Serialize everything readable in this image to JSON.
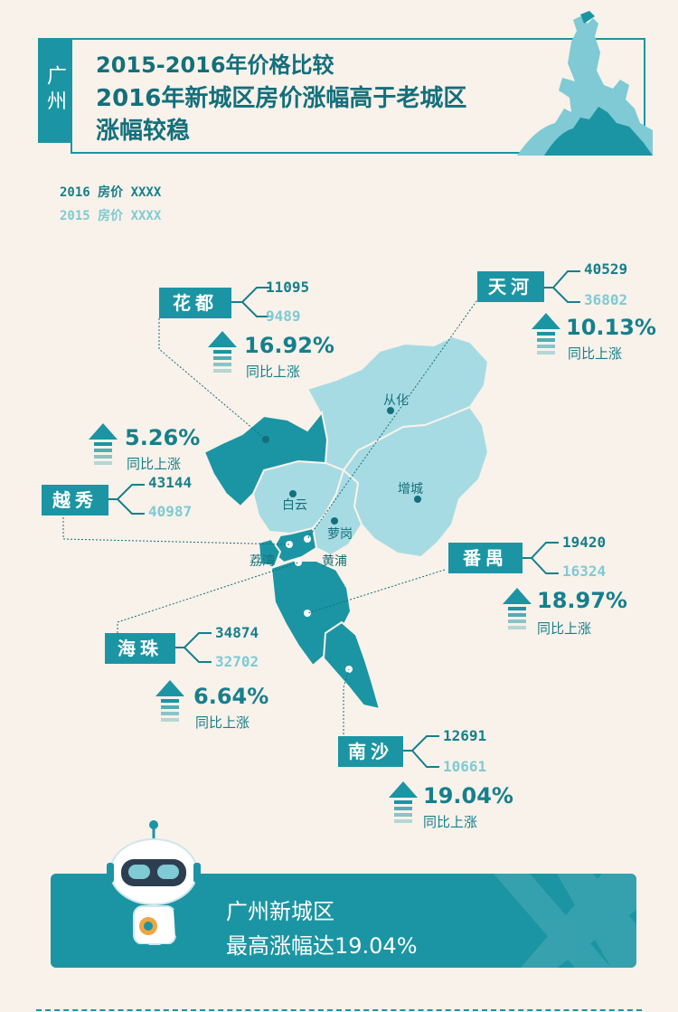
{
  "header": {
    "city": "广州",
    "title1": "2015-2016年价格比较",
    "title2": "2016年新城区房价涨幅高于老城区",
    "title3": "涨幅较稳"
  },
  "legend": {
    "y2016": "2016 房价 XXXX",
    "y2015": "2015 房价 XXXX"
  },
  "districts": {
    "huadu": {
      "name": "花都",
      "v2016": "11095",
      "v2015": "9489",
      "pct": "16.92%",
      "yoy": "同比上涨"
    },
    "tianhe": {
      "name": "天河",
      "v2016": "40529",
      "v2015": "36802",
      "pct": "10.13%",
      "yoy": "同比上涨"
    },
    "yuexiu": {
      "name": "越秀",
      "v2016": "43144",
      "v2015": "40987",
      "pct": "5.26%",
      "yoy": "同比上涨"
    },
    "panyu": {
      "name": "番禺",
      "v2016": "19420",
      "v2015": "16324",
      "pct": "18.97%",
      "yoy": "同比上涨"
    },
    "haizhu": {
      "name": "海珠",
      "v2016": "34874",
      "v2015": "32702",
      "pct": "6.64%",
      "yoy": "同比上涨"
    },
    "nansha": {
      "name": "南沙",
      "v2016": "12691",
      "v2015": "10661",
      "pct": "19.04%",
      "yoy": "同比上涨"
    }
  },
  "map_labels": {
    "conghua": "从化",
    "baiyun": "白云",
    "zengcheng": "增城",
    "luogang": "萝岗",
    "huangpu": "黄浦",
    "liwan": "荔湾"
  },
  "banner": {
    "line1": "广州新城区",
    "line2": "最高涨幅达19.04%"
  },
  "colors": {
    "primary": "#1b95a3",
    "dark": "#167f8c",
    "light": "#7fcad4",
    "map_light": "#a7dbe3",
    "background": "#f8f2ea"
  }
}
